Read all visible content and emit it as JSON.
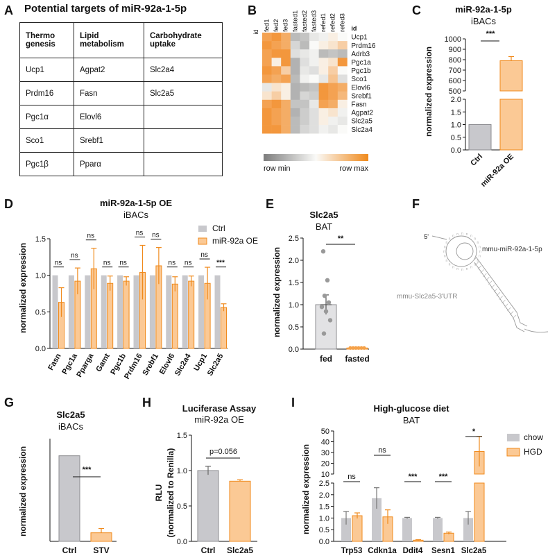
{
  "colors": {
    "ctrl": "#c8c8cc",
    "ctrl_edge": "#8c8c90",
    "orange": "#f5a24a",
    "orange_light": "#fbc995",
    "orange_line": "#f08a1c",
    "dark": "#111111"
  },
  "panel_labels": {
    "a": "A",
    "b": "B",
    "c": "C",
    "d": "D",
    "e": "E",
    "f": "F",
    "g": "G",
    "h": "H",
    "i": "I"
  },
  "table": {
    "title": "Potential targets of miR-92a-1-5p",
    "headers": [
      "Thermo genesis",
      "Lipid metabolism",
      "Carbohydrate uptake"
    ],
    "rows": [
      [
        "Ucp1",
        "Agpat2",
        "Slc2a4"
      ],
      [
        "Prdm16",
        "Fasn",
        "Slc2a5"
      ],
      [
        "Pgc1α",
        "Elovl6",
        ""
      ],
      [
        "Sco1",
        "Srebf1",
        ""
      ],
      [
        "Pgc1β",
        "Pparα",
        ""
      ]
    ]
  },
  "heatmap": {
    "id_label": "id",
    "columns": [
      "fed1",
      "fed2",
      "fed3",
      "fasted1",
      "fasted2",
      "fasted3",
      "refed1",
      "refed2",
      "refed3"
    ],
    "rows": [
      "Ucp1",
      "Prdm16",
      "Adrb3",
      "Pgc1a",
      "Pgc1b",
      "Sco1",
      "Elovl6",
      "Srebf1",
      "Fasn",
      "Agpat2",
      "Slc2a5",
      "Slc2a4"
    ],
    "legend_min": "row min",
    "legend_max": "row max"
  },
  "chart_data": [
    {
      "panel": "C",
      "type": "bar",
      "title": "miR-92a-1-5p",
      "subtitle": "iBACs",
      "ylabel": "normalized expression",
      "categories": [
        "Ctrl",
        "miR-92a OE"
      ],
      "values": [
        1.0,
        790
      ],
      "errors": [
        0,
        40
      ],
      "ylim_lower": [
        0,
        2.0
      ],
      "ylim_upper": [
        500,
        1000
      ],
      "yticks_lower": [
        "0.0",
        "0.5",
        "1.0",
        "1.5",
        "2.0"
      ],
      "yticks_upper": [
        "500",
        "600",
        "700",
        "800",
        "900",
        "1000"
      ],
      "significance": "***"
    },
    {
      "panel": "D",
      "type": "bar",
      "title": "miR-92a-1-5p OE",
      "subtitle": "iBACs",
      "ylabel": "normalized expression",
      "categories": [
        "Fasn",
        "Pgc1a",
        "Pparga",
        "Gamt",
        "Pgc1b",
        "Prdm16",
        "Srebf1",
        "Elovl6",
        "Slc2a4",
        "Ucp1",
        "Slc2a5"
      ],
      "series": [
        {
          "name": "Ctrl",
          "values": [
            1,
            1,
            1,
            1,
            1,
            1,
            1,
            1,
            1,
            1,
            1
          ],
          "errors": [
            0,
            0,
            0,
            0,
            0,
            0,
            0,
            0,
            0,
            0,
            0
          ]
        },
        {
          "name": "miR-92a OE",
          "values": [
            0.63,
            0.92,
            1.09,
            0.89,
            0.92,
            1.04,
            1.13,
            0.88,
            0.92,
            0.89,
            0.56
          ],
          "errors": [
            0.2,
            0.18,
            0.28,
            0.1,
            0.06,
            0.37,
            0.25,
            0.1,
            0.07,
            0.22,
            0.05
          ]
        }
      ],
      "ylim": [
        0,
        1.5
      ],
      "yticks": [
        "0.0",
        "0.5",
        "1.0",
        "1.5"
      ],
      "significance": [
        "ns",
        "ns",
        "ns",
        "ns",
        "ns",
        "ns",
        "ns",
        "ns",
        "ns",
        "ns",
        "***"
      ]
    },
    {
      "panel": "E",
      "type": "bar",
      "title": "Slc2a5",
      "subtitle": "BAT",
      "ylabel": "normalized expression",
      "categories": [
        "fed",
        "fasted"
      ],
      "values": [
        1.0,
        0.01
      ],
      "errors": [
        0.22,
        0.005
      ],
      "points": [
        [
          2.2,
          1.55,
          1.2,
          1.05,
          0.95,
          0.85,
          0.65,
          0.35
        ],
        [
          0.01,
          0.01,
          0.01,
          0.01,
          0.01,
          0.01
        ]
      ],
      "ylim": [
        0,
        2.5
      ],
      "yticks": [
        "0.0",
        "0.5",
        "1.0",
        "1.5",
        "2.0",
        "2.5"
      ],
      "significance": "**"
    },
    {
      "panel": "G",
      "type": "bar",
      "title": "Slc2a5",
      "subtitle": "iBACs",
      "ylabel": "normalized expression",
      "categories": [
        "Ctrl",
        "STV"
      ],
      "values": [
        1.0,
        0.1
      ],
      "errors": [
        0,
        0.05
      ],
      "ylim": [
        0,
        1.2
      ],
      "significance": "***"
    },
    {
      "panel": "H",
      "type": "bar",
      "title": "Luciferase Assay",
      "subtitle": "miR-92a OE",
      "ylabel": "RLU",
      "ylabel2": "(normalized to Renilla)",
      "categories": [
        "Ctrl",
        "Slc2a5"
      ],
      "values": [
        1.0,
        0.85
      ],
      "errors": [
        0.06,
        0.02
      ],
      "ylim": [
        0,
        1.5
      ],
      "yticks": [
        "0.0",
        "0.5",
        "1.0",
        "1.5"
      ],
      "significance": "p=0.056"
    },
    {
      "panel": "I",
      "type": "bar",
      "title": "High-glucose diet",
      "subtitle": "BAT",
      "ylabel": "normalized expression",
      "categories": [
        "Trp53",
        "Cdkn1a",
        "Ddit4",
        "Sesn1",
        "Slc2a5"
      ],
      "series": [
        {
          "name": "chow",
          "values": [
            1.0,
            1.85,
            1.0,
            1.0,
            1.0
          ],
          "errors": [
            0.28,
            0.45,
            0.03,
            0.03,
            0.28
          ]
        },
        {
          "name": "HGD",
          "values": [
            1.1,
            1.05,
            0.05,
            0.35,
            31
          ],
          "errors": [
            0.12,
            0.3,
            0.02,
            0.05,
            14
          ]
        }
      ],
      "ylim_lower": [
        0,
        2.5
      ],
      "ylim_upper": [
        10,
        50
      ],
      "yticks_lower": [
        "0.0",
        "0.5",
        "1.0",
        "1.5",
        "2.0",
        "2.5"
      ],
      "yticks_upper": [
        "10",
        "20",
        "30",
        "40",
        "50"
      ],
      "significance": [
        "ns",
        "ns",
        "***",
        "***",
        "*"
      ]
    }
  ],
  "structure": {
    "label_5prime": "5'",
    "mirna_label": "mmu-miR-92a-1-5p",
    "utr_label": "mmu-Slc2a5-3'UTR"
  }
}
